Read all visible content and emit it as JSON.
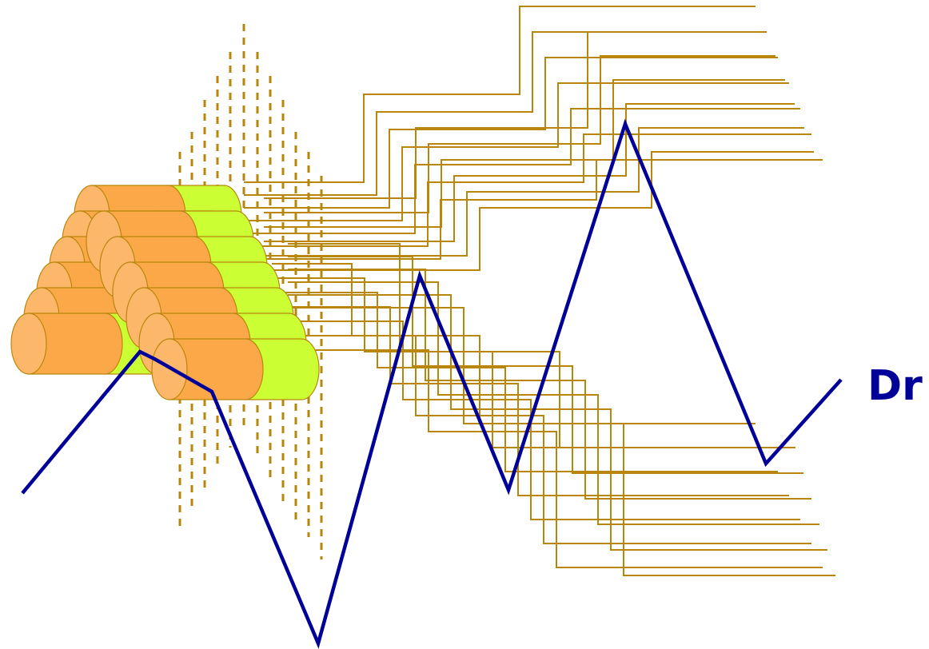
{
  "label": "Dr",
  "colors": {
    "wire": "#b8860b",
    "dash": "#b8860b",
    "zigzag": "#000099",
    "cylinder_orange": "#fba848",
    "cylinder_cap": "#fdb76a",
    "cylinder_green": "#ccff33",
    "cylinder_outline": "#b8860b",
    "label": "#000099"
  },
  "icons": [
    "cylinder-stack",
    "dashed-line-array",
    "wire-bundle",
    "zigzag-path"
  ]
}
